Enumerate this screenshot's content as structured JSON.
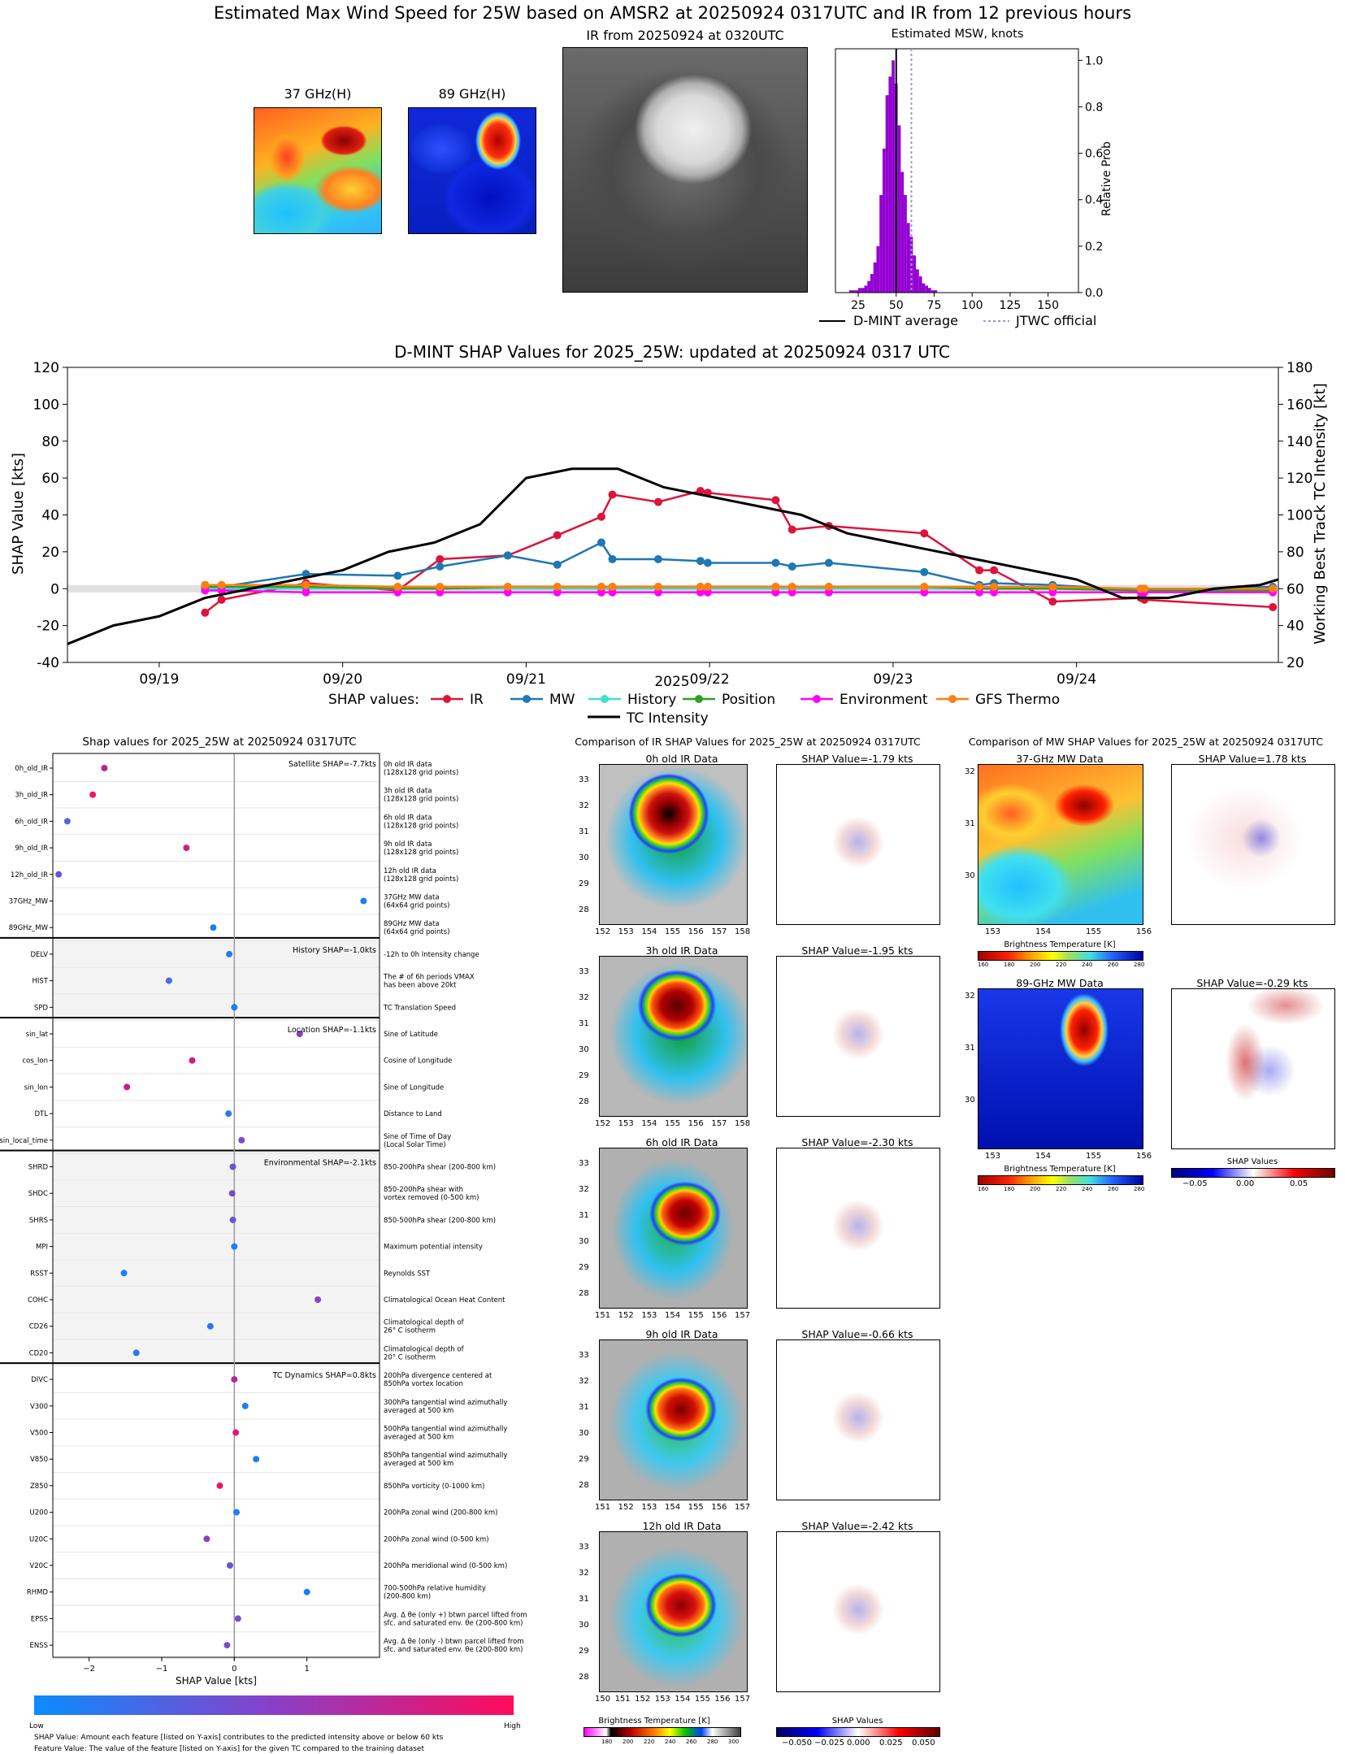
{
  "top": {
    "title": "Estimated Max Wind Speed for 25W based on AMSR2 at 20250924 0317UTC and IR from 12 previous hours",
    "img37_title": "37 GHz(H)",
    "img89_title": "89 GHz(H)",
    "ir_title": "IR from 20250924 at 0320UTC",
    "hist_title": "Estimated MSW, knots",
    "hist_ylabel": "Relative Prob",
    "hist_xticks": [
      "25",
      "50",
      "75",
      "100",
      "125",
      "150"
    ],
    "hist_yticks": [
      "0.0",
      "0.2",
      "0.4",
      "0.6",
      "0.8",
      "1.0"
    ],
    "legend_avg": "D-MINT average",
    "legend_jtwc": "JTWC official",
    "colors": {
      "hist_bar": "#9400d3",
      "avg_line": "#000000",
      "jtwc_line": "#9aa0b8"
    }
  },
  "shap_ts": {
    "title": "D-MINT SHAP Values for 2025_25W: updated at 20250924 0317 UTC",
    "ylabel_left": "SHAP Value [kts]",
    "ylabel_right": "Working Best Track TC Intensity [kt]",
    "xlabel": "2025",
    "xticks": [
      "09/19",
      "09/20",
      "09/21",
      "09/22",
      "09/23",
      "09/24"
    ],
    "yticks_left": [
      "-40",
      "-20",
      "0",
      "20",
      "40",
      "60",
      "80",
      "100",
      "120"
    ],
    "yticks_right": [
      "20",
      "40",
      "60",
      "80",
      "100",
      "120",
      "140",
      "160",
      "180"
    ],
    "legend_label": "SHAP values:",
    "legend": [
      "IR",
      "MW",
      "History",
      "Position",
      "Environment",
      "GFS Thermo",
      "TC Intensity"
    ]
  },
  "chart_data": [
    {
      "type": "bar",
      "title": "Estimated MSW, knots",
      "ylabel": "Relative Prob",
      "xlim": [
        10,
        170
      ],
      "ylim": [
        0,
        1.05
      ],
      "bin_width": 2,
      "x": [
        20,
        22,
        24,
        26,
        28,
        30,
        32,
        34,
        36,
        38,
        40,
        42,
        44,
        46,
        48,
        50,
        52,
        54,
        56,
        58,
        60,
        62,
        64,
        66,
        68,
        70,
        72,
        74,
        76
      ],
      "values": [
        0.01,
        0.01,
        0.01,
        0.02,
        0.02,
        0.03,
        0.05,
        0.08,
        0.13,
        0.2,
        0.42,
        0.62,
        0.85,
        0.93,
        1.0,
        0.9,
        0.72,
        0.52,
        0.42,
        0.3,
        0.24,
        0.16,
        0.1,
        0.07,
        0.04,
        0.03,
        0.02,
        0.01,
        0.01
      ],
      "dmint_average": 50,
      "jtwc_official": 60
    },
    {
      "type": "line",
      "title": "D-MINT SHAP Values for 2025_25W: updated at 20250924 0317 UTC",
      "xlabel": "2025",
      "ylabel": "SHAP Value [kts]",
      "ylabel_right": "Working Best Track TC Intensity [kt]",
      "xlim": [
        0,
        6.6
      ],
      "ylim": [
        -40,
        120
      ],
      "ylim_right": [
        20,
        180
      ],
      "x_origin_label": "09/18 12Z",
      "series": [
        {
          "name": "IR",
          "color": "#dc143c",
          "x": [
            0.75,
            0.84,
            1.3,
            1.8,
            2.03,
            2.4,
            2.67,
            2.91,
            2.97,
            3.22,
            3.45,
            3.49,
            3.86,
            3.95,
            4.15,
            4.67,
            4.97,
            5.05,
            5.37,
            5.85,
            5.87,
            6.57
          ],
          "y": [
            -13,
            -6,
            3,
            -1,
            16,
            18,
            29,
            39,
            51,
            47,
            53,
            52,
            48,
            32,
            34,
            30,
            10,
            10,
            -7,
            -5,
            -6,
            -10
          ]
        },
        {
          "name": "MW",
          "color": "#1f77b4",
          "x": [
            0.75,
            0.84,
            1.3,
            1.8,
            2.03,
            2.4,
            2.67,
            2.91,
            2.97,
            3.22,
            3.45,
            3.49,
            3.86,
            3.95,
            4.15,
            4.67,
            4.97,
            5.05,
            5.37,
            5.85,
            5.87,
            6.57
          ],
          "y": [
            2,
            1,
            8,
            7,
            12,
            18,
            13,
            25,
            16,
            16,
            15,
            14,
            14,
            12,
            14,
            9,
            2,
            3,
            2,
            -1,
            -1,
            1
          ]
        },
        {
          "name": "History",
          "color": "#40e0d0",
          "x": [
            0.75,
            0.84,
            1.3,
            1.8,
            2.03,
            2.4,
            2.67,
            2.91,
            2.97,
            3.22,
            3.45,
            3.49,
            3.86,
            3.95,
            4.15,
            4.67,
            4.97,
            5.05,
            5.37,
            5.85,
            5.87,
            6.57
          ],
          "y": [
            0,
            0,
            0,
            0,
            0,
            0,
            0,
            0,
            0,
            0,
            0,
            0,
            0,
            0,
            0,
            0,
            0,
            0,
            0,
            0,
            0,
            0
          ]
        },
        {
          "name": "Position",
          "color": "#2ca02c",
          "x": [
            0.75,
            0.84,
            1.3,
            1.8,
            2.03,
            2.4,
            2.67,
            2.91,
            2.97,
            3.22,
            3.45,
            3.49,
            3.86,
            3.95,
            4.15,
            4.67,
            4.97,
            5.05,
            5.37,
            5.85,
            5.87,
            6.57
          ],
          "y": [
            1,
            1,
            1,
            0,
            0,
            1,
            1,
            1,
            1,
            1,
            1,
            1,
            1,
            1,
            1,
            1,
            0,
            0,
            0,
            -1,
            -1,
            -1
          ]
        },
        {
          "name": "Environment",
          "color": "#ff00ff",
          "x": [
            0.75,
            0.84,
            1.3,
            1.8,
            2.03,
            2.4,
            2.67,
            2.91,
            2.97,
            3.22,
            3.45,
            3.49,
            3.86,
            3.95,
            4.15,
            4.67,
            4.97,
            5.05,
            5.37,
            5.85,
            5.87,
            6.57
          ],
          "y": [
            -1,
            -1,
            -2,
            -2,
            -2,
            -2,
            -2,
            -2,
            -2,
            -2,
            -2,
            -2,
            -2,
            -2,
            -2,
            -2,
            -2,
            -2,
            -2,
            -2,
            -2,
            -2
          ]
        },
        {
          "name": "GFS Thermo",
          "color": "#ff7f0e",
          "x": [
            0.75,
            0.84,
            1.3,
            1.8,
            2.03,
            2.4,
            2.67,
            2.91,
            2.97,
            3.22,
            3.45,
            3.49,
            3.86,
            3.95,
            4.15,
            4.67,
            4.97,
            5.05,
            5.37,
            5.85,
            5.87,
            6.57
          ],
          "y": [
            2,
            2,
            2,
            1,
            1,
            1,
            1,
            1,
            1,
            1,
            1,
            1,
            1,
            1,
            1,
            1,
            1,
            1,
            1,
            0,
            0,
            0
          ]
        }
      ],
      "intensity": {
        "name": "TC Intensity",
        "x": [
          0,
          0.25,
          0.5,
          0.75,
          1.0,
          1.25,
          1.5,
          1.75,
          2.0,
          2.25,
          2.5,
          2.75,
          3.0,
          3.25,
          3.5,
          3.75,
          4.0,
          4.25,
          4.5,
          4.75,
          5.0,
          5.25,
          5.5,
          5.75,
          6.0,
          6.25,
          6.5,
          6.6
        ],
        "y": [
          30,
          40,
          45,
          55,
          60,
          65,
          70,
          80,
          85,
          95,
          120,
          125,
          125,
          115,
          110,
          105,
          100,
          90,
          85,
          80,
          75,
          70,
          65,
          55,
          55,
          60,
          62,
          65
        ]
      }
    },
    {
      "type": "scatter",
      "title": "Shap values for 2025_25W at 20250924 0317UTC",
      "xlabel": "SHAP Value [kts]",
      "xlim": [
        -2.5,
        2.0
      ],
      "features": [
        "0h_old_IR",
        "3h_old_IR",
        "6h_old_IR",
        "9h_old_IR",
        "12h_old_IR",
        "37GHz_MW",
        "89GHz_MW",
        "DELV",
        "HIST",
        "SPD",
        "sin_lat",
        "cos_lon",
        "sin_lon",
        "DTL",
        "sin_local_time",
        "SHRD",
        "SHDC",
        "SHRS",
        "MPI",
        "RSST",
        "COHC",
        "CD26",
        "CD20",
        "DIVC",
        "V300",
        "V500",
        "V850",
        "Z850",
        "U200",
        "U20C",
        "V20C",
        "RHMD",
        "EPSS",
        "ENSS"
      ],
      "values": [
        -1.79,
        -1.95,
        -2.3,
        -0.66,
        -2.42,
        1.78,
        -0.29,
        -0.07,
        -0.9,
        0.0,
        0.9,
        -0.58,
        -1.48,
        -0.08,
        0.1,
        -0.02,
        -0.03,
        -0.02,
        0.0,
        -1.52,
        1.15,
        -0.33,
        -1.35,
        0.0,
        0.15,
        0.02,
        0.3,
        -0.2,
        0.03,
        -0.38,
        -0.06,
        1.0,
        0.05,
        -0.1
      ],
      "feature_value_colors": [
        "#c0208e",
        "#e8186a",
        "#5a64d8",
        "#d31d7e",
        "#6a55d0",
        "#1a7ff0",
        "#1a7ff0",
        "#2a78e8",
        "#4a6ae0",
        "#1a7ff0",
        "#8840c0",
        "#d8187a",
        "#c8208a",
        "#2a78e8",
        "#7a4ccc",
        "#6a55d0",
        "#7a4ccc",
        "#6a55d0",
        "#1a7ff0",
        "#1a7ff0",
        "#9040c0",
        "#2a78e8",
        "#2a78e8",
        "#b028a0",
        "#1a7ff0",
        "#e0187a",
        "#1a7ff0",
        "#e81868",
        "#1a7ff0",
        "#8840c0",
        "#6a55d0",
        "#1a7ff0",
        "#7a4ccc",
        "#7a4ccc"
      ]
    }
  ],
  "left_panel": {
    "title": "Shap values for 2025_25W at 20250924 0317UTC",
    "xlabel": "SHAP Value [kts]",
    "xticks": [
      "−2",
      "−1",
      "0",
      "1"
    ],
    "group_labels": [
      "Satellite SHAP=-7.7kts",
      "History SHAP=-1.0kts",
      "Location SHAP=-1.1kts",
      "Environmental SHAP=-2.1kts",
      "TC Dynamics SHAP=0.8kts"
    ],
    "descriptions": [
      "0h old IR data\n(128x128 grid points)",
      "3h old IR data\n(128x128 grid points)",
      "6h old IR data\n(128x128 grid points)",
      "9h old IR data\n(128x128 grid points)",
      "12h old IR data\n(128x128 grid points)",
      "37GHz MW data\n(64x64 grid points)",
      "89GHz MW data\n(64x64 grid points)",
      "-12h to 0h Intensity change",
      "The # of 6h periods VMAX\nhas been above 20kt",
      "TC Translation Speed",
      "Sine of Latitude",
      "Cosine of Longitude",
      "Sine of Longitude",
      "Distance to Land",
      "Sine of Time of Day\n(Local Solar Time)",
      "850-200hPa shear (200-800 km)",
      "850-200hPa shear with\nvortex removed (0-500 km)",
      "850-500hPa shear (200-800 km)",
      "Maximum potential intensity",
      "Reynolds SST",
      "Climatological Ocean Heat Content",
      "Climatological depth of\n26° C isotherm",
      "Climatological depth of\n20° C isotherm",
      "200hPa divergence centered at\n850hPa vortex location",
      "300hPa tangential wind azimuthally\naveraged at 500 km",
      "500hPa tangential wind azimuthally\naveraged at 500 km",
      "850hPa tangential wind azimuthally\naveraged at 500 km",
      "850hPa vorticity (0-1000 km)",
      "200hPa zonal wind (200-800 km)",
      "200hPa zonal wind (0-500 km)",
      "200hPa meridional wind (0-500 km)",
      "700-500hPa relative humidity\n(200-800 km)",
      "Avg. Δ θe (only +) btwn parcel lifted from\nsfc. and saturated env. θe (200-800 km)",
      "Avg. Δ θe (only -) btwn parcel lifted from\nsfc. and saturated env. θe (200-800 km)"
    ],
    "colorbar_low": "Low",
    "colorbar_high": "High",
    "footnote1": "SHAP Value: Amount each feature [listed on Y-axis] contributes to the predicted intensity above or below 60 kts",
    "footnote2": "Feature Value: The value of the feature [listed on Y-axis] for the given TC compared to the training dataset"
  },
  "ir_compare": {
    "title": "Comparison of IR SHAP Values for 2025_25W at 20250924 0317UTC",
    "rows": [
      {
        "label": "0h old IR Data",
        "shap": "SHAP Value=-1.79 kts",
        "xticks": [
          "152",
          "153",
          "154",
          "155",
          "156",
          "157",
          "158"
        ],
        "yticks": [
          "33",
          "32",
          "31",
          "30",
          "29",
          "28"
        ]
      },
      {
        "label": "3h old IR Data",
        "shap": "SHAP Value=-1.95 kts",
        "xticks": [
          "152",
          "153",
          "154",
          "155",
          "156",
          "157",
          "158"
        ],
        "yticks": [
          "33",
          "32",
          "31",
          "30",
          "29",
          "28"
        ]
      },
      {
        "label": "6h old IR Data",
        "shap": "SHAP Value=-2.30 kts",
        "xticks": [
          "151",
          "152",
          "153",
          "154",
          "155",
          "156",
          "157"
        ],
        "yticks": [
          "33",
          "32",
          "31",
          "30",
          "29",
          "28"
        ]
      },
      {
        "label": "9h old IR Data",
        "shap": "SHAP Value=-0.66 kts",
        "xticks": [
          "151",
          "152",
          "153",
          "154",
          "155",
          "156",
          "157"
        ],
        "yticks": [
          "33",
          "32",
          "31",
          "30",
          "29",
          "28"
        ]
      },
      {
        "label": "12h old IR Data",
        "shap": "SHAP Value=-2.42 kts",
        "xticks": [
          "150",
          "151",
          "152",
          "153",
          "154",
          "155",
          "156",
          "157"
        ],
        "yticks": [
          "33",
          "32",
          "31",
          "30",
          "29",
          "28"
        ]
      }
    ],
    "cbar_bt_label": "Brightness Temperature [K]",
    "cbar_bt_ticks": [
      "180",
      "200",
      "220",
      "240",
      "260",
      "280",
      "300"
    ],
    "cbar_shap_label": "SHAP Values",
    "cbar_shap_ticks": [
      "−0.050",
      "−0.025",
      "0.000",
      "0.025",
      "0.050"
    ]
  },
  "mw_compare": {
    "title": "Comparison of MW SHAP Values for 2025_25W at 20250924 0317UTC",
    "rows": [
      {
        "label": "37-GHz MW Data",
        "shap": "SHAP Value=1.78 kts",
        "xticks": [
          "153",
          "154",
          "155",
          "156"
        ],
        "yticks": [
          "32",
          "31",
          "30"
        ]
      },
      {
        "label": "89-GHz MW Data",
        "shap": "SHAP Value=-0.29 kts",
        "xticks": [
          "153",
          "154",
          "155",
          "156"
        ],
        "yticks": [
          "32",
          "31",
          "30"
        ]
      }
    ],
    "cbar_bt_label": "Brightness Temperature [K]",
    "cbar_bt_ticks": [
      "160",
      "180",
      "200",
      "220",
      "240",
      "260",
      "280"
    ],
    "cbar_shap_label": "SHAP Values",
    "cbar_shap_ticks": [
      "−0.05",
      "0.00",
      "0.05"
    ]
  }
}
